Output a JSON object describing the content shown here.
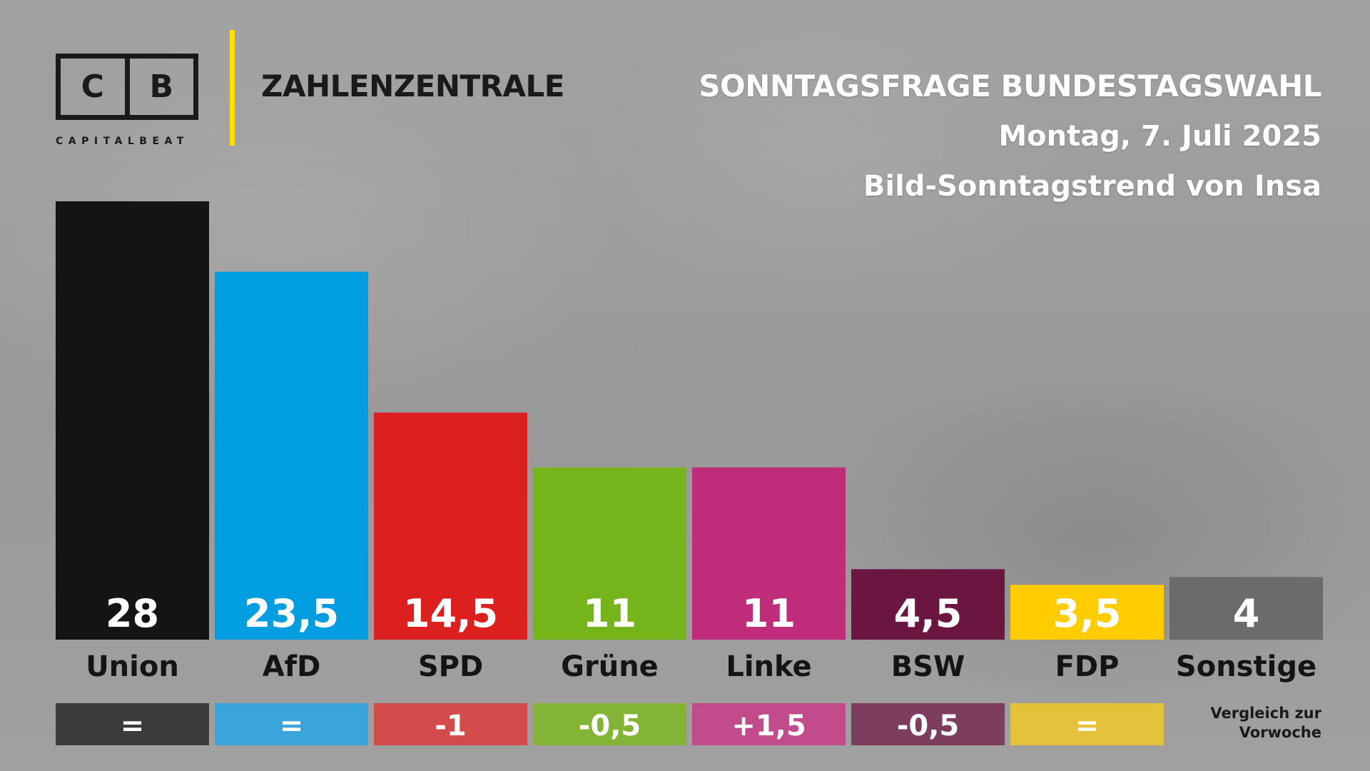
{
  "brand": {
    "logo_left": "C",
    "logo_right": "B",
    "logo_sub": "CAPITALBEAT",
    "name": "ZAHLENZENTRALE"
  },
  "header": {
    "title": "SONNTAGSFRAGE BUNDESTAGSWAHL",
    "date": "Montag, 7. Juli 2025",
    "source": "Bild-Sonntagstrend von Insa"
  },
  "footnote": {
    "line1": "Vergleich zur",
    "line2": "Vorwoche"
  },
  "chart_data": {
    "type": "bar",
    "title": "SONNTAGSFRAGE BUNDESTAGSWAHL",
    "categories": [
      "Union",
      "AfD",
      "SPD",
      "Grüne",
      "Linke",
      "BSW",
      "FDP",
      "Sonstige"
    ],
    "values": [
      28,
      23.5,
      14.5,
      11,
      11,
      4.5,
      3.5,
      4
    ],
    "value_labels": [
      "28",
      "23,5",
      "14,5",
      "11",
      "11",
      "4,5",
      "3,5",
      "4"
    ],
    "changes": [
      "=",
      "=",
      "-1",
      "-0,5",
      "+1,5",
      "-0,5",
      "=",
      null
    ],
    "colors": [
      "#141414",
      "#009ee0",
      "#dc1f1f",
      "#75b41a",
      "#be2c7a",
      "#6a1641",
      "#ffcc00",
      "#6b6b6b"
    ],
    "change_colors": [
      "#3c3c3c",
      "#3ba4da",
      "#d34b4b",
      "#84b436",
      "#c24b8c",
      "#7c3d5e",
      "#e5c23c",
      null
    ],
    "ylim": [
      0,
      28
    ],
    "grid": false,
    "legend": "none"
  }
}
